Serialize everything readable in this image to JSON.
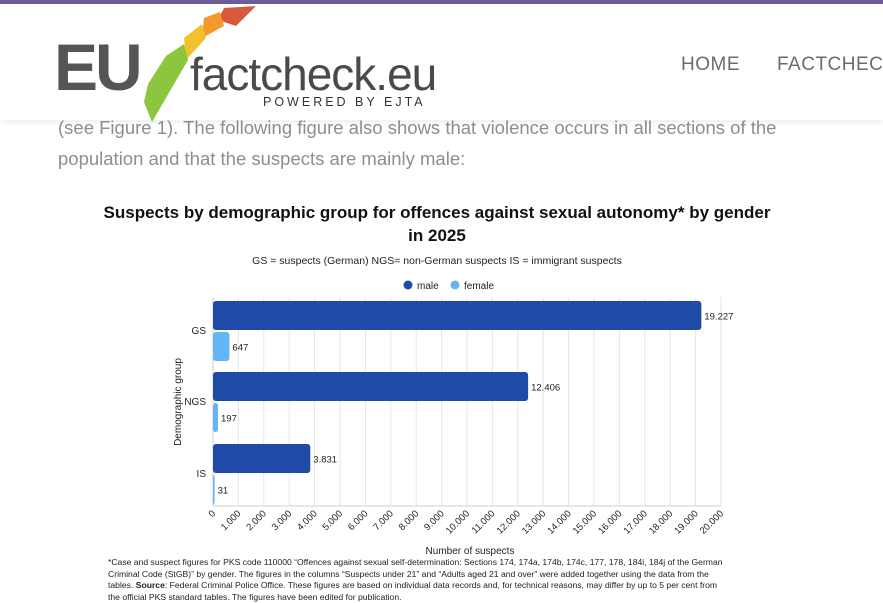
{
  "brand": {
    "logo_main": "EU",
    "logo_sub": "factcheck.eu",
    "tagline": "POWERED BY EJTA",
    "colors": {
      "eu_text": "#555555",
      "check_green": "#8cc63f",
      "check_yellow": "#f2c12e",
      "check_orange": "#f29a2e",
      "check_red": "#d9583b",
      "top_bar": "#6f5c9a"
    }
  },
  "nav": {
    "items": [
      "HOME",
      "FACTCHECK"
    ]
  },
  "article": {
    "intro_text": "(see Figure 1). The following figure also shows that violence occurs in all sections of the population and that the suspects are mainly male:"
  },
  "chart_data": {
    "type": "bar",
    "orientation": "horizontal",
    "title_line1": "Suspects by demographic group for offences against sexual autonomy* by gender",
    "title_line2": "in 2025",
    "subtitle": "GS = suspects (German)    NGS= non-German suspects    IS = immigrant suspects",
    "categories": [
      "GS",
      "NGS",
      "IS"
    ],
    "series": [
      {
        "name": "male",
        "color": "#1f4aa8",
        "values": [
          19227,
          12406,
          3831
        ],
        "labels": [
          "19.227",
          "12.406",
          "3.831"
        ]
      },
      {
        "name": "female",
        "color": "#64b5f6",
        "values": [
          647,
          197,
          31
        ],
        "labels": [
          "647",
          "197",
          "31"
        ]
      }
    ],
    "xlabel": "Number of suspects",
    "ylabel": "Demographic group",
    "xlim": [
      0,
      20000
    ],
    "xticks": [
      0,
      1000,
      2000,
      3000,
      4000,
      5000,
      6000,
      7000,
      8000,
      9000,
      10000,
      11000,
      12000,
      13000,
      14000,
      15000,
      16000,
      17000,
      18000,
      19000,
      20000
    ],
    "xtick_labels": [
      "0",
      "1.000",
      "2.000",
      "3.000",
      "4.000",
      "5.000",
      "6.000",
      "7.000",
      "8.000",
      "9.000",
      "10.000",
      "11.000",
      "12.000",
      "13.000",
      "14.000",
      "15.000",
      "16.000",
      "17.000",
      "18.000",
      "19.000",
      "20.000"
    ],
    "grid": true,
    "legend_position": "top-center"
  },
  "footnote": {
    "line1": "*Case and suspect figures for PKS code 110000 “Offences against sexual self-determination: Sections 174, 174a, 174b, 174c, 177, 178, 184i, 184j of the German",
    "line2": "Criminal Code (StGB)” by gender. The figures in the columns “Suspects under 21” and “Adults aged 21 and over” were added together using the data from the",
    "line3_pre": "tables. ",
    "source_label": "Source",
    "line3_post": ": Federal Criminal Police Office. These figures are based on individual data records and, for technical reasons, may differ by up to 5 per cent from",
    "line4": "the official PKS standard tables. The figures have been edited for publication."
  }
}
